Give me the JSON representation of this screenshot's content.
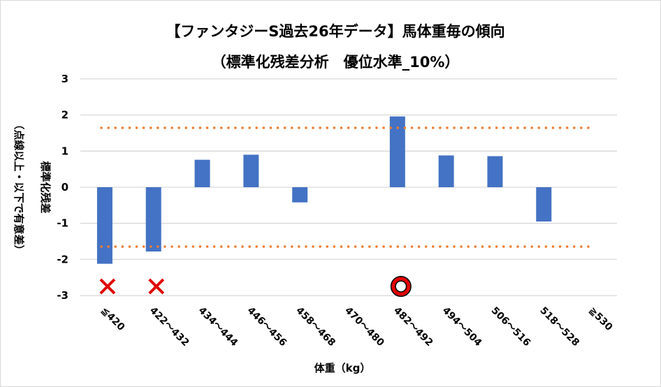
{
  "chart_data": {
    "type": "bar",
    "title": "【ファンタジーS過去26年データ】馬体重毎の傾向",
    "subtitle": "（標準化残差分析　優位水準_10%）",
    "xlabel": "体重（kg）",
    "ylabel": "標準化残差",
    "ylabel2": "（点線以上・以下で有意差）",
    "categories": [
      "≦420",
      "422～432",
      "434～444",
      "446～456",
      "458～468",
      "470～480",
      "482～492",
      "494～504",
      "506～516",
      "518～528",
      "≧530"
    ],
    "values": [
      -2.12,
      -1.78,
      0.76,
      0.9,
      -0.42,
      0,
      1.96,
      0.88,
      0.86,
      -0.95,
      0
    ],
    "ylim": [
      -3,
      3
    ],
    "yticks": [
      3,
      2,
      1,
      0,
      -1,
      -2,
      -3
    ],
    "thresholds": [
      1.645,
      -1.645
    ],
    "markers": [
      {
        "category": "≦420",
        "symbol": "×"
      },
      {
        "category": "422～432",
        "symbol": "×"
      },
      {
        "category": "482～492",
        "symbol": "○"
      }
    ],
    "grid": true,
    "colors": {
      "bar": "#4472c4",
      "threshold": "#ed7d31",
      "marker": "#e00000",
      "grid": "#d9d9d9"
    }
  }
}
